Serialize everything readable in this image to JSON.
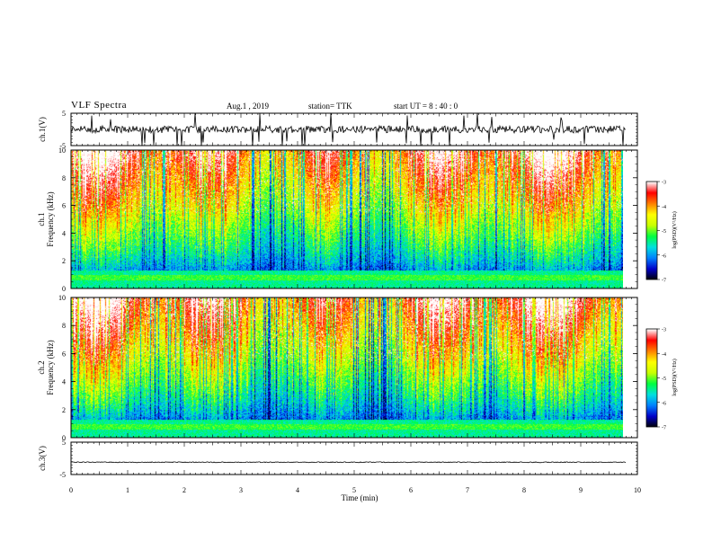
{
  "header": {
    "title": "VLF  Spectra",
    "date": "Aug.1  , 2019",
    "station": "station= TTK",
    "start": "start  UT  =   8 : 40 : 0"
  },
  "chart_data": [
    {
      "type": "line",
      "name": "ch1-waveform",
      "ylabel": "ch.1(V)",
      "ylim": [
        -5,
        5
      ],
      "yticks": [
        "5",
        "-5"
      ],
      "xlim": [
        0,
        10
      ],
      "description_values": "noisy waveform centred near 0 V with spikes reaching about +5 / -5 V"
    },
    {
      "type": "heatmap",
      "name": "ch1-spectrogram",
      "ylabel": "ch.1\nFrequency (kHz)",
      "ylim": [
        0,
        10
      ],
      "yticks": [
        "0",
        "2",
        "4",
        "6",
        "8",
        "10"
      ],
      "xlim": [
        0,
        10
      ],
      "colorbar": {
        "label": "log(PSD)(V²/Hz)",
        "range": [
          -7,
          -3
        ],
        "ticks": [
          "-3",
          "-4",
          "-5",
          "-6",
          "-7"
        ]
      }
    },
    {
      "type": "heatmap",
      "name": "ch2-spectrogram",
      "ylabel": "ch.2\nFrequency (kHz)",
      "ylim": [
        0,
        10
      ],
      "yticks": [
        "0",
        "2",
        "4",
        "6",
        "8",
        "10"
      ],
      "xlim": [
        0,
        10
      ],
      "colorbar": {
        "label": "log(PSD)(V²/Hz)",
        "range": [
          -7,
          -3
        ],
        "ticks": [
          "-3",
          "-4",
          "-5",
          "-6",
          "-7"
        ]
      }
    },
    {
      "type": "line",
      "name": "ch3-waveform",
      "ylabel": "ch.3(V)",
      "ylim": [
        -5,
        5
      ],
      "yticks": [
        "5",
        "-5"
      ],
      "xlim": [
        0,
        10
      ],
      "description_values": "nearly flat trace near -1 V"
    }
  ],
  "xaxis": {
    "label": "Time  (min)",
    "ticks": [
      "0",
      "1",
      "2",
      "3",
      "4",
      "5",
      "6",
      "7",
      "8",
      "9",
      "10"
    ],
    "data_end_min": 9.8
  },
  "colors": {
    "scale": [
      "#000000",
      "#0000c8",
      "#0080ff",
      "#00e0e0",
      "#00ff40",
      "#c8ff00",
      "#ffff00",
      "#ff8000",
      "#ff0000",
      "#ffffff"
    ]
  }
}
